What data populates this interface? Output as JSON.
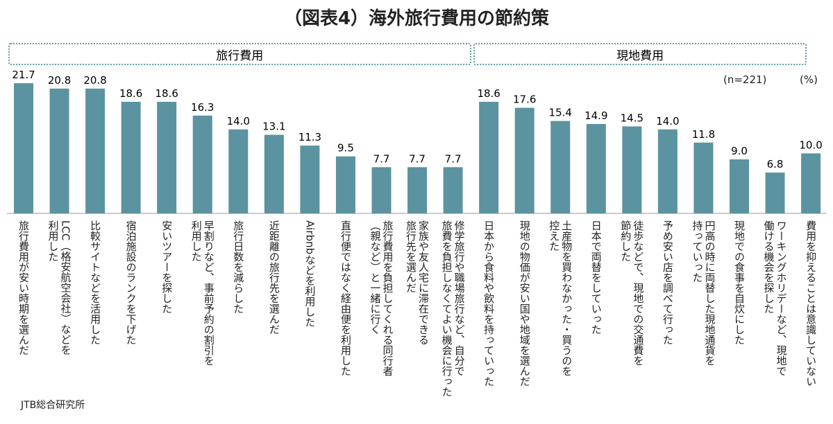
{
  "chart_data": {
    "type": "bar",
    "title": "（図表4）海外旅行費用の節約策",
    "groups": [
      {
        "label": "旅行費用",
        "count": 13
      },
      {
        "label": "現地費用",
        "count": 10
      }
    ],
    "sample_note": "(n=221)",
    "unit_note": "(%)",
    "source": "JTB総合研究所",
    "color": "#5b93a0",
    "categories": [
      "旅行費用が安い時期を選んだ",
      "LCC（格安航空会社）などを\n利用した",
      "比較サイトなどを活用した",
      "宿泊施設のランクを下げた",
      "安いツアーを探した",
      "早割りなど、事前予約の割引を\n利用した",
      "旅行日数を減らした",
      "近距離の旅行先を選んだ",
      "Airbnbなどを利用した",
      "直行便ではなく経由便を利用した",
      "旅行費用を負担してくれる同行者\n（親など）と一緒に行く",
      "家族や友人宅に滞在できる\n旅行先を選んだ",
      "修学旅行や職場旅行など、自分で\n旅費を負担しなくてよい機会に行った",
      "日本から食料や飲料を持っていった",
      "現地の物価が安い国や地域を選んだ",
      "土産物を買わなかった・買うのを\n控えた",
      "日本で両替をしていった",
      "徒歩などで、現地での交通費を\n節約した",
      "予め安い店を調べて行った",
      "円高の時に両替した現地通貨を\n持っていった",
      "現地での食事を自炊にした",
      "ワーキングホリデーなど、現地で\n働ける機会を探した",
      "費用を抑えることは意識していない"
    ],
    "values": [
      21.7,
      20.8,
      20.8,
      18.6,
      18.6,
      16.3,
      14.0,
      13.1,
      11.3,
      9.5,
      7.7,
      7.7,
      7.7,
      18.6,
      17.6,
      15.4,
      14.9,
      14.5,
      14.0,
      11.8,
      9.0,
      6.8,
      10.0
    ],
    "value_labels": [
      "21.7",
      "20.8",
      "20.8",
      "18.6",
      "18.6",
      "16.3",
      "14.0",
      "13.1",
      "11.3",
      "9.5",
      "7.7",
      "7.7",
      "7.7",
      "18.6",
      "17.6",
      "15.4",
      "14.9",
      "14.5",
      "14.0",
      "11.8",
      "9.0",
      "6.8",
      "10.0"
    ]
  }
}
